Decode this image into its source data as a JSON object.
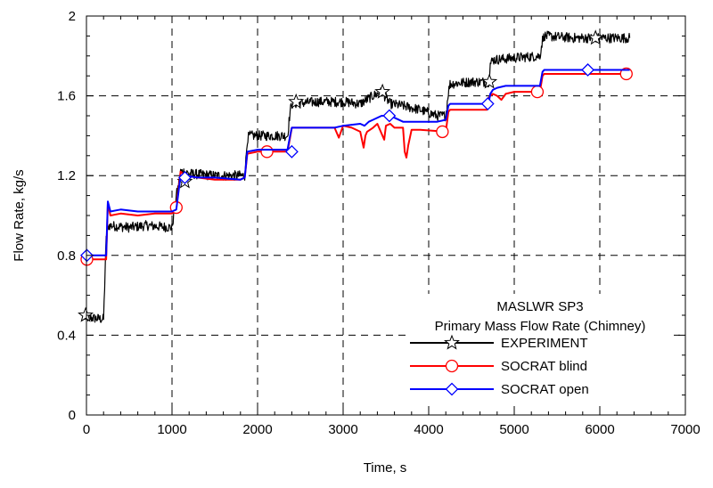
{
  "chart_data": {
    "type": "line",
    "title": "",
    "xlabel": "Time, s",
    "ylabel": "Flow Rate, kg/s",
    "xlim": [
      0,
      7000
    ],
    "ylim": [
      0,
      2
    ],
    "xticks": [
      "0",
      "1000",
      "2000",
      "3000",
      "4000",
      "5000",
      "6000",
      "7000"
    ],
    "yticks": [
      "0",
      "0.4",
      "0.8",
      "1.2",
      "1.6",
      "2"
    ],
    "grid": true,
    "legend": {
      "position": "bottom-right",
      "title_lines": [
        "MASLWR SP3",
        "Primary Mass Flow Rate (Chimney)"
      ]
    },
    "series": [
      {
        "name": "EXPERIMENT",
        "color": "#000000",
        "marker": "star",
        "noise": 0.025,
        "x": [
          -20,
          200,
          230,
          260,
          500,
          700,
          1000,
          1020,
          1050,
          1080,
          1100,
          1150,
          1200,
          1500,
          1850,
          1880,
          1900,
          2100,
          2350,
          2380,
          2400,
          2700,
          3000,
          3200,
          3350,
          3450,
          3550,
          3700,
          3900,
          4100,
          4200,
          4230,
          4250,
          4500,
          4700,
          4720,
          4750,
          5000,
          5300,
          5330,
          5350,
          5700,
          6000,
          6350
        ],
        "y": [
          0.49,
          0.48,
          0.88,
          0.95,
          0.94,
          0.95,
          0.94,
          1.0,
          1.1,
          1.16,
          1.22,
          1.22,
          1.21,
          1.2,
          1.2,
          1.38,
          1.4,
          1.4,
          1.4,
          1.52,
          1.56,
          1.57,
          1.57,
          1.56,
          1.6,
          1.62,
          1.56,
          1.55,
          1.53,
          1.5,
          1.5,
          1.62,
          1.66,
          1.67,
          1.67,
          1.76,
          1.78,
          1.79,
          1.8,
          1.88,
          1.9,
          1.89,
          1.89,
          1.89
        ],
        "markers": [
          [
            -10,
            0.5
          ],
          [
            1150,
            1.17
          ],
          [
            2450,
            1.57
          ],
          [
            3460,
            1.62
          ],
          [
            4710,
            1.67
          ],
          [
            5950,
            1.89
          ]
        ]
      },
      {
        "name": "SOCRAT blind",
        "color": "#ff0000",
        "marker": "circle",
        "noise": 0,
        "x": [
          -20,
          230,
          250,
          280,
          400,
          600,
          800,
          1000,
          1050,
          1100,
          1150,
          1300,
          1500,
          1800,
          1850,
          1880,
          2000,
          2350,
          2380,
          2400,
          2500,
          2900,
          2950,
          3000,
          3100,
          3200,
          3240,
          3260,
          3280,
          3350,
          3400,
          3480,
          3500,
          3550,
          3600,
          3700,
          3720,
          3740,
          3760,
          3800,
          3900,
          4200,
          4230,
          4250,
          4650,
          4680,
          4700,
          4720,
          4750,
          4800,
          4850,
          4900,
          5000,
          5300,
          5330,
          5350,
          6350
        ],
        "y": [
          0.78,
          0.78,
          1.06,
          1.0,
          1.01,
          1.0,
          1.01,
          1.01,
          1.04,
          1.22,
          1.2,
          1.19,
          1.18,
          1.18,
          1.19,
          1.31,
          1.32,
          1.32,
          1.39,
          1.44,
          1.44,
          1.44,
          1.39,
          1.45,
          1.44,
          1.42,
          1.34,
          1.4,
          1.42,
          1.44,
          1.46,
          1.38,
          1.45,
          1.46,
          1.44,
          1.44,
          1.32,
          1.29,
          1.35,
          1.43,
          1.43,
          1.42,
          1.52,
          1.53,
          1.53,
          1.53,
          1.59,
          1.6,
          1.61,
          1.6,
          1.58,
          1.61,
          1.62,
          1.62,
          1.7,
          1.71,
          1.71
        ],
        "markers": [
          [
            5,
            0.78
          ],
          [
            1050,
            1.04
          ],
          [
            2110,
            1.32
          ],
          [
            4160,
            1.42
          ],
          [
            5270,
            1.62
          ],
          [
            6310,
            1.71
          ]
        ]
      },
      {
        "name": "SOCRAT open",
        "color": "#0000ff",
        "marker": "diamond",
        "noise": 0,
        "x": [
          -20,
          230,
          250,
          280,
          400,
          600,
          800,
          1000,
          1050,
          1100,
          1150,
          1300,
          1500,
          1800,
          1850,
          1880,
          2000,
          2350,
          2380,
          2400,
          2500,
          2900,
          3000,
          3200,
          3250,
          3300,
          3350,
          3450,
          3500,
          3600,
          3700,
          3800,
          4100,
          4200,
          4230,
          4250,
          4700,
          4720,
          4750,
          4800,
          4900,
          5300,
          5330,
          5350,
          6350
        ],
        "y": [
          0.8,
          0.8,
          1.07,
          1.02,
          1.03,
          1.02,
          1.02,
          1.02,
          1.03,
          1.2,
          1.2,
          1.19,
          1.19,
          1.18,
          1.19,
          1.32,
          1.33,
          1.33,
          1.4,
          1.44,
          1.44,
          1.44,
          1.45,
          1.46,
          1.45,
          1.47,
          1.48,
          1.5,
          1.5,
          1.49,
          1.47,
          1.47,
          1.47,
          1.48,
          1.55,
          1.56,
          1.56,
          1.61,
          1.63,
          1.64,
          1.65,
          1.65,
          1.72,
          1.73,
          1.73
        ],
        "markers": [
          [
            5,
            0.8
          ],
          [
            1150,
            1.19
          ],
          [
            2400,
            1.32
          ],
          [
            3540,
            1.5
          ],
          [
            4690,
            1.56
          ],
          [
            5860,
            1.73
          ]
        ]
      }
    ]
  }
}
